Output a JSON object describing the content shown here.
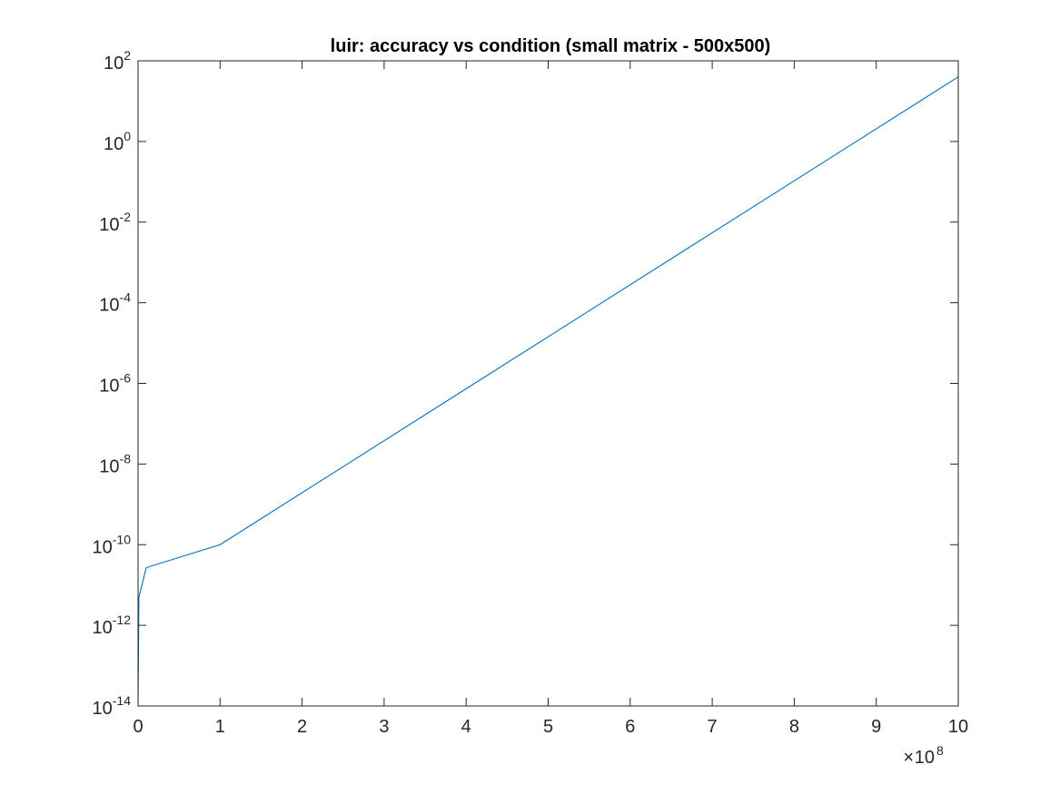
{
  "chart_data": {
    "type": "line",
    "title": "luir: accuracy vs condition (small matrix - 500x500)",
    "xlabel": "",
    "ylabel": "",
    "x_exponent_base": "10",
    "x_exponent_power": "8",
    "x_scale": 100000000,
    "xlim": [
      0,
      1000000000
    ],
    "ylim": [
      1e-14,
      100
    ],
    "yscale": "log",
    "grid": false,
    "x_ticks": [
      {
        "value": 0,
        "label": "0"
      },
      {
        "value": 100000000,
        "label": "1"
      },
      {
        "value": 200000000,
        "label": "2"
      },
      {
        "value": 300000000,
        "label": "3"
      },
      {
        "value": 400000000,
        "label": "4"
      },
      {
        "value": 500000000,
        "label": "5"
      },
      {
        "value": 600000000,
        "label": "6"
      },
      {
        "value": 700000000,
        "label": "7"
      },
      {
        "value": 800000000,
        "label": "8"
      },
      {
        "value": 900000000,
        "label": "9"
      },
      {
        "value": 1000000000,
        "label": "10"
      }
    ],
    "y_ticks": [
      {
        "value": 1e-14,
        "base": "10",
        "exp": "-14"
      },
      {
        "value": 1e-12,
        "base": "10",
        "exp": "-12"
      },
      {
        "value": 1e-10,
        "base": "10",
        "exp": "-10"
      },
      {
        "value": 1e-08,
        "base": "10",
        "exp": "-8"
      },
      {
        "value": 1e-06,
        "base": "10",
        "exp": "-6"
      },
      {
        "value": 0.0001,
        "base": "10",
        "exp": "-4"
      },
      {
        "value": 0.01,
        "base": "10",
        "exp": "-2"
      },
      {
        "value": 1,
        "base": "10",
        "exp": "0"
      },
      {
        "value": 100,
        "base": "10",
        "exp": "2"
      }
    ],
    "series": [
      {
        "color": "#0072BD",
        "x": [
          0,
          1000000,
          10000000,
          100000000,
          1000000000
        ],
        "y": [
          1e-14,
          5e-12,
          2.7e-11,
          1e-10,
          40
        ]
      }
    ]
  }
}
